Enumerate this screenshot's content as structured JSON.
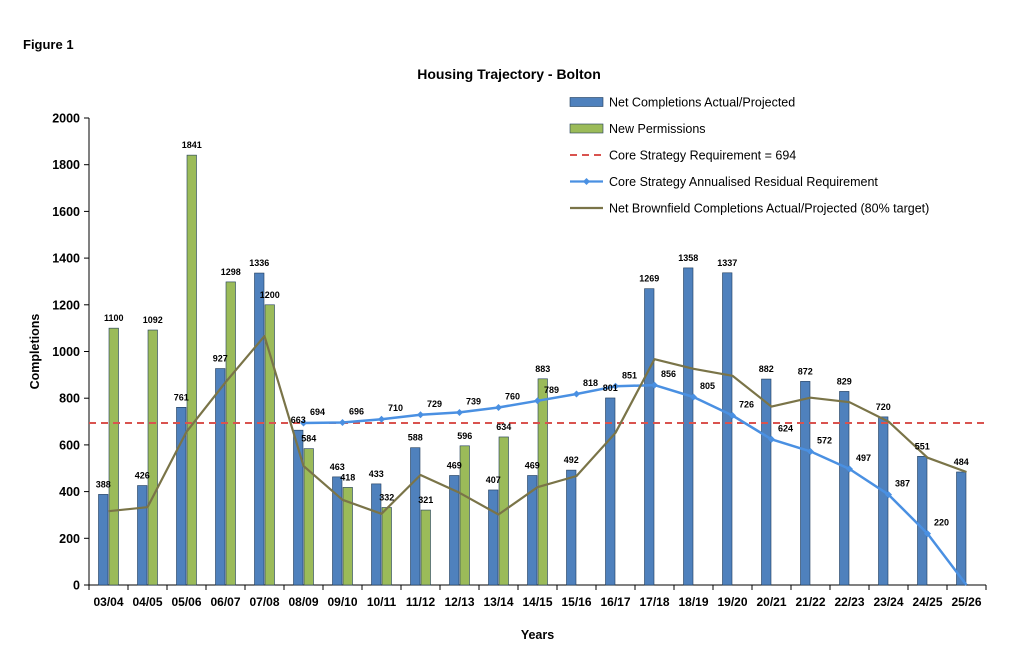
{
  "figure_label": "Figure 1",
  "chart_data": {
    "type": "bar",
    "title": "Housing Trajectory - Bolton",
    "xlabel": "Years",
    "ylabel": "Completions",
    "ylim": [
      0,
      2000
    ],
    "yticks": [
      0,
      200,
      400,
      600,
      800,
      1000,
      1200,
      1400,
      1600,
      1800,
      2000
    ],
    "grid": false,
    "legend_position": "top-right",
    "categories": [
      "03/04",
      "04/05",
      "05/06",
      "06/07",
      "07/08",
      "08/09",
      "09/10",
      "10/11",
      "11/12",
      "12/13",
      "13/14",
      "14/15",
      "15/16",
      "16/17",
      "17/18",
      "18/19",
      "19/20",
      "20/21",
      "21/22",
      "22/23",
      "23/24",
      "24/25",
      "25/26"
    ],
    "series": [
      {
        "name": "Net Completions Actual/Projected",
        "kind": "bar",
        "color": "#4F81BD",
        "values": [
          388,
          426,
          761,
          927,
          1336,
          663,
          463,
          433,
          588,
          469,
          407,
          469,
          492,
          801,
          1269,
          1358,
          1337,
          882,
          872,
          829,
          720,
          551,
          484
        ],
        "labels": [
          "388",
          "426",
          "761",
          "927",
          "1336",
          "663",
          "463",
          "433",
          "588",
          "469",
          "407",
          "469",
          "492",
          "801",
          "1269",
          "1358",
          "1337",
          "882",
          "872",
          "829",
          "720",
          "551",
          "484"
        ]
      },
      {
        "name": "New Permissions",
        "kind": "bar",
        "color": "#9BBB59",
        "values": [
          1100,
          1092,
          1841,
          1298,
          1200,
          584,
          418,
          332,
          321,
          596,
          634,
          883,
          null,
          null,
          null,
          null,
          null,
          null,
          null,
          null,
          null,
          null,
          null
        ],
        "labels": [
          "1100",
          "1092",
          "1841",
          "1298",
          "1200",
          "584",
          "418",
          "332",
          "321",
          "596",
          "634",
          "883",
          null,
          null,
          null,
          null,
          null,
          null,
          null,
          null,
          null,
          null,
          null
        ]
      },
      {
        "name": "Core Strategy Requirement = 694",
        "kind": "hline",
        "color": "#D9534F",
        "value": 694
      },
      {
        "name": "Core Strategy Annualised Residual Requirement",
        "kind": "line",
        "color": "#4A90E2",
        "values": [
          null,
          null,
          null,
          null,
          null,
          694,
          696,
          710,
          729,
          739,
          760,
          789,
          818,
          851,
          856,
          805,
          726,
          624,
          572,
          497,
          387,
          220,
          0
        ],
        "labels": [
          null,
          null,
          null,
          null,
          null,
          "694",
          "696",
          "710",
          "729",
          "739",
          "760",
          "789",
          "818",
          "851",
          "856",
          "805",
          "726",
          "624",
          "572",
          "497",
          "387",
          "220",
          null
        ]
      },
      {
        "name": "Net Brownfield Completions Actual/Projected (80% target)",
        "kind": "line",
        "color": "#7A7448",
        "values": [
          316,
          333,
          656,
          868,
          1066,
          510,
          365,
          305,
          471,
          395,
          302,
          419,
          467,
          652,
          967,
          926,
          896,
          764,
          802,
          783,
          700,
          545,
          484
        ]
      }
    ]
  }
}
